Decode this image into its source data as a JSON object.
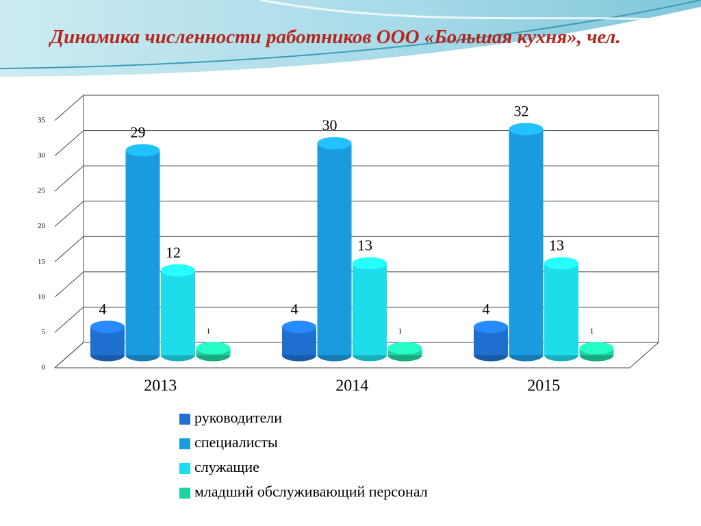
{
  "chart_data": {
    "type": "bar3d",
    "title": "Динамика численности работников ООО «Большая кухня», чел.",
    "categories": [
      "2013",
      "2014",
      "2015"
    ],
    "series": [
      {
        "name": "руководители",
        "color": "#1f6fd0",
        "values": [
          4,
          4,
          4
        ]
      },
      {
        "name": "специалисты",
        "color": "#1a9be0",
        "values": [
          29,
          30,
          32
        ]
      },
      {
        "name": "служащие",
        "color": "#1fdcea",
        "values": [
          12,
          13,
          13
        ]
      },
      {
        "name": "младший обслуживающий персонал",
        "color": "#1fd3a0",
        "values": [
          1,
          1,
          1
        ]
      }
    ],
    "ylim": [
      0,
      35
    ],
    "yticks": [
      0,
      5,
      10,
      15,
      20,
      25,
      30,
      35
    ],
    "grid": true,
    "legend": "bottom"
  }
}
